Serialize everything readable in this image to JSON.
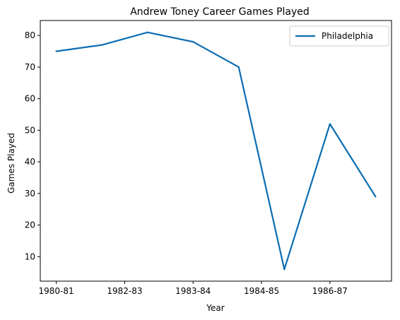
{
  "chart_data": {
    "type": "line",
    "title": "Andrew Toney Career Games Played",
    "xlabel": "Year",
    "ylabel": "Games Played",
    "x": [
      0,
      1,
      2,
      3,
      4,
      5,
      6,
      7
    ],
    "x_tick_positions": [
      0,
      1.5,
      3,
      4.5,
      6
    ],
    "x_tick_labels": [
      "1980-81",
      "1982-83",
      "1983-84",
      "1984-85",
      "1986-87"
    ],
    "y_ticks": [
      10,
      20,
      30,
      40,
      50,
      60,
      70,
      80
    ],
    "xlim": [
      -0.35,
      7.35
    ],
    "ylim": [
      2.25,
      84.75
    ],
    "grid": false,
    "legend_position": "top-right",
    "series": [
      {
        "name": "Philadelphia",
        "color": "#0a6db2",
        "values": [
          75,
          77,
          81,
          78,
          70,
          6,
          52,
          29
        ]
      }
    ]
  }
}
